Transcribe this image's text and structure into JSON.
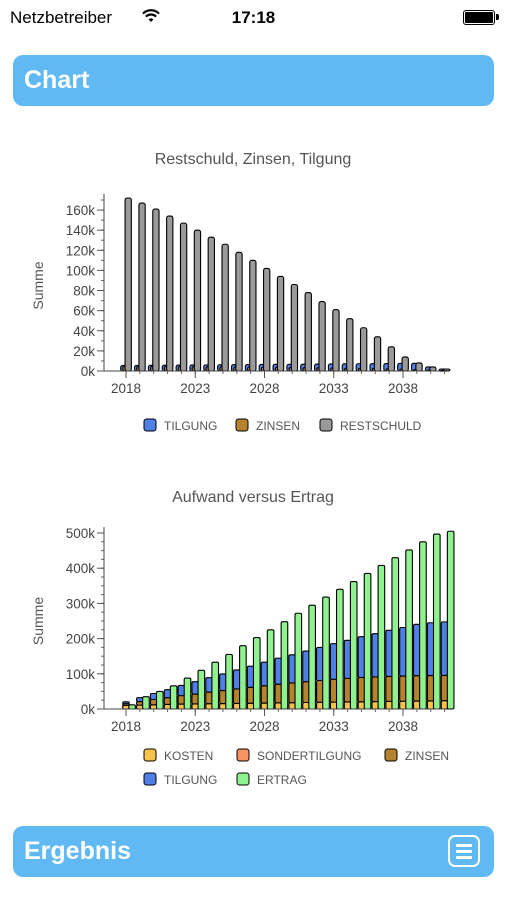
{
  "status_bar": {
    "carrier": "Netzbetreiber",
    "time": "17:18"
  },
  "header": {
    "title": "Chart"
  },
  "footer": {
    "title": "Ergebnis"
  },
  "colors": {
    "accent": "#60b9f2",
    "tilgung": "#5080e6",
    "zinsen": "#b5822e",
    "restschuld": "#9a9a9a",
    "kosten": "#f7c14d",
    "sondertilgung": "#f59462",
    "ertrag": "#8ff28f"
  },
  "chart_data": [
    {
      "type": "bar",
      "title": "Restschuld, Zinsen, Tilgung",
      "ylabel": "Summe",
      "xlim": [
        2018,
        2041
      ],
      "ylim": [
        0,
        170000
      ],
      "yticks": [
        0,
        20000,
        40000,
        60000,
        80000,
        100000,
        120000,
        140000,
        160000
      ],
      "ytick_labels": [
        "0k",
        "20k",
        "40k",
        "60k",
        "80k",
        "100k",
        "120k",
        "140k",
        "160k"
      ],
      "xticks": [
        2018,
        2023,
        2028,
        2033,
        2038
      ],
      "xtick_labels": [
        "2018",
        "2023",
        "2028",
        "2033",
        "2038"
      ],
      "x": [
        2018,
        2019,
        2020,
        2021,
        2022,
        2023,
        2024,
        2025,
        2026,
        2027,
        2028,
        2029,
        2030,
        2031,
        2032,
        2033,
        2034,
        2035,
        2036,
        2037,
        2038,
        2039,
        2040,
        2041
      ],
      "legend": [
        "TILGUNG",
        "ZINSEN",
        "RESTSCHULD"
      ],
      "legend_position": "bottom",
      "series": [
        {
          "name": "TILGUNG",
          "color": "#5080e6",
          "values": [
            5500,
            5600,
            5700,
            5800,
            5900,
            6000,
            6100,
            6200,
            6300,
            6400,
            6500,
            6600,
            6700,
            6800,
            6900,
            7000,
            7100,
            7200,
            7300,
            7400,
            7500,
            7600,
            4000,
            2000
          ]
        },
        {
          "name": "ZINSEN",
          "color": "#b5822e",
          "values": [
            5000,
            4900,
            4800,
            4700,
            4600,
            4500,
            4400,
            4300,
            4200,
            4100,
            4000,
            3900,
            3700,
            3500,
            3300,
            3100,
            2900,
            2700,
            2500,
            2200,
            1900,
            1600,
            1200,
            800
          ]
        },
        {
          "name": "RESTSCHULD",
          "color": "#9a9a9a",
          "values": [
            172000,
            167000,
            161000,
            154000,
            147000,
            140000,
            133000,
            126000,
            118000,
            110000,
            102000,
            94000,
            86000,
            78000,
            69000,
            61000,
            52000,
            43000,
            34000,
            24000,
            14000,
            8000,
            4000,
            2000
          ]
        }
      ]
    },
    {
      "type": "bar",
      "title": "Aufwand versus Ertrag",
      "ylabel": "Summe",
      "xlim": [
        2018,
        2041
      ],
      "ylim": [
        0,
        500000
      ],
      "yticks": [
        0,
        100000,
        200000,
        300000,
        400000,
        500000
      ],
      "ytick_labels": [
        "0k",
        "100k",
        "200k",
        "300k",
        "400k",
        "500k"
      ],
      "xticks": [
        2018,
        2023,
        2028,
        2033,
        2038
      ],
      "xtick_labels": [
        "2018",
        "2023",
        "2028",
        "2033",
        "2038"
      ],
      "x": [
        2018,
        2019,
        2020,
        2021,
        2022,
        2023,
        2024,
        2025,
        2026,
        2027,
        2028,
        2029,
        2030,
        2031,
        2032,
        2033,
        2034,
        2035,
        2036,
        2037,
        2038,
        2039,
        2040,
        2041
      ],
      "legend": [
        "KOSTEN",
        "SONDERTILGUNG",
        "ZINSEN",
        "TILGUNG",
        "ERTRAG"
      ],
      "legend_position": "bottom",
      "series": [
        {
          "name": "KOSTEN",
          "color": "#f7c14d",
          "values": [
            10000,
            11000,
            12000,
            13000,
            14000,
            14500,
            15000,
            15500,
            16000,
            16500,
            17000,
            17500,
            18000,
            18500,
            19000,
            19500,
            20000,
            20500,
            21000,
            21500,
            22000,
            22500,
            23000,
            23500
          ]
        },
        {
          "name": "SONDERTILGUNG",
          "color": "#f59462",
          "values": [
            0,
            0,
            0,
            0,
            0,
            0,
            0,
            0,
            0,
            0,
            0,
            0,
            0,
            0,
            0,
            0,
            0,
            0,
            0,
            0,
            0,
            0,
            0,
            0
          ]
        },
        {
          "name": "ZINSEN",
          "color": "#b5822e",
          "values": [
            5000,
            10000,
            15000,
            19000,
            24000,
            28000,
            33000,
            37000,
            41000,
            45000,
            49000,
            53000,
            56000,
            59000,
            62000,
            65000,
            67000,
            69000,
            70000,
            71000,
            71500,
            72000,
            72000,
            72000
          ]
        },
        {
          "name": "TILGUNG",
          "color": "#5080e6",
          "values": [
            5500,
            11000,
            17000,
            23000,
            29000,
            35000,
            41000,
            47000,
            54000,
            60000,
            67000,
            74000,
            80000,
            87000,
            94000,
            101000,
            108000,
            116000,
            123000,
            131000,
            138000,
            146000,
            150000,
            152000
          ]
        },
        {
          "name": "ERTRAG",
          "color": "#8ff28f",
          "values": [
            12000,
            35000,
            50000,
            66000,
            88000,
            110000,
            133000,
            155000,
            180000,
            203000,
            225000,
            248000,
            272000,
            295000,
            318000,
            340000,
            362000,
            385000,
            408000,
            430000,
            452000,
            475000,
            497000,
            505000
          ]
        }
      ]
    }
  ]
}
